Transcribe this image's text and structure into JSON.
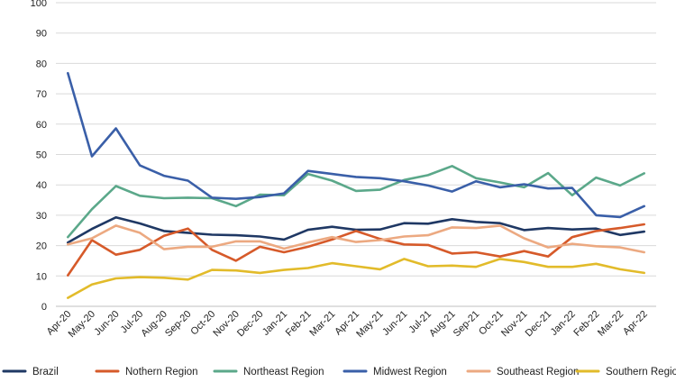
{
  "chart_data": {
    "type": "line",
    "title": "",
    "xlabel": "",
    "ylabel": "",
    "ylim": [
      0,
      100
    ],
    "yticks": [
      0,
      10,
      20,
      30,
      40,
      50,
      60,
      70,
      80,
      90,
      100
    ],
    "grid": true,
    "legend_position": "bottom",
    "categories": [
      "Apr-20",
      "May-20",
      "Jun-20",
      "Jul-20",
      "Aug-20",
      "Sep-20",
      "Oct-20",
      "Nov-20",
      "Dec-20",
      "Jan-21",
      "Feb-21",
      "Mar-21",
      "Apr-21",
      "May-21",
      "Jun-21",
      "Jul-21",
      "Aug-21",
      "Sep-21",
      "Oct-21",
      "Nov-21",
      "Dec-21",
      "Jan-22",
      "Feb-22",
      "Mar-22",
      "Apr-22"
    ],
    "series": [
      {
        "name": "Brazil",
        "color": "#1f3864",
        "values": [
          21,
          25.5,
          29.3,
          27.3,
          24.8,
          24.2,
          23.6,
          23.4,
          23.0,
          22.0,
          25.2,
          26.2,
          25.2,
          25.3,
          27.4,
          27.2,
          28.7,
          27.8,
          27.4,
          25.1,
          25.8,
          25.3,
          25.6,
          23.5,
          24.6
        ]
      },
      {
        "name": "Nothern Region",
        "color": "#d65a2a",
        "values": [
          10.2,
          21.8,
          17.0,
          18.6,
          23.2,
          25.6,
          18.6,
          15.0,
          19.6,
          17.8,
          19.6,
          22.0,
          24.8,
          22.2,
          20.4,
          20.2,
          17.4,
          17.8,
          16.4,
          18.2,
          16.4,
          22.8,
          24.8,
          25.8,
          27.0
        ]
      },
      {
        "name": "Northeast Region",
        "color": "#5ba88a",
        "values": [
          22.8,
          32.0,
          39.6,
          36.4,
          35.6,
          35.8,
          35.6,
          33.0,
          36.8,
          36.6,
          43.6,
          41.4,
          38.0,
          38.4,
          41.6,
          43.2,
          46.2,
          42.2,
          40.8,
          39.2,
          43.9,
          36.6,
          42.4,
          39.8,
          43.8
        ]
      },
      {
        "name": "Midwest Region",
        "color": "#3a5fa8",
        "values": [
          76.8,
          49.4,
          58.6,
          46.4,
          43.0,
          41.4,
          35.8,
          35.4,
          36.0,
          37.2,
          44.6,
          43.6,
          42.6,
          42.2,
          41.2,
          39.8,
          37.8,
          41.2,
          39.2,
          40.2,
          38.8,
          39.0,
          30.0,
          29.4,
          33.0
        ]
      },
      {
        "name": "Southeast Region",
        "color": "#eca981",
        "values": [
          20.4,
          22.4,
          26.6,
          24.2,
          18.8,
          19.6,
          19.6,
          21.4,
          21.4,
          19.0,
          21.0,
          22.8,
          21.2,
          21.8,
          23.0,
          23.4,
          26.0,
          25.8,
          26.6,
          22.4,
          19.4,
          20.6,
          19.8,
          19.4,
          17.8
        ]
      },
      {
        "name": "Southern Region",
        "color": "#e2bb2a",
        "values": [
          2.8,
          7.2,
          9.2,
          9.6,
          9.4,
          8.8,
          12.0,
          11.8,
          11.0,
          12.0,
          12.6,
          14.2,
          13.2,
          12.2,
          15.6,
          13.2,
          13.4,
          13.0,
          15.6,
          14.6,
          13.0,
          13.0,
          14.0,
          12.2,
          11.0
        ]
      }
    ]
  }
}
